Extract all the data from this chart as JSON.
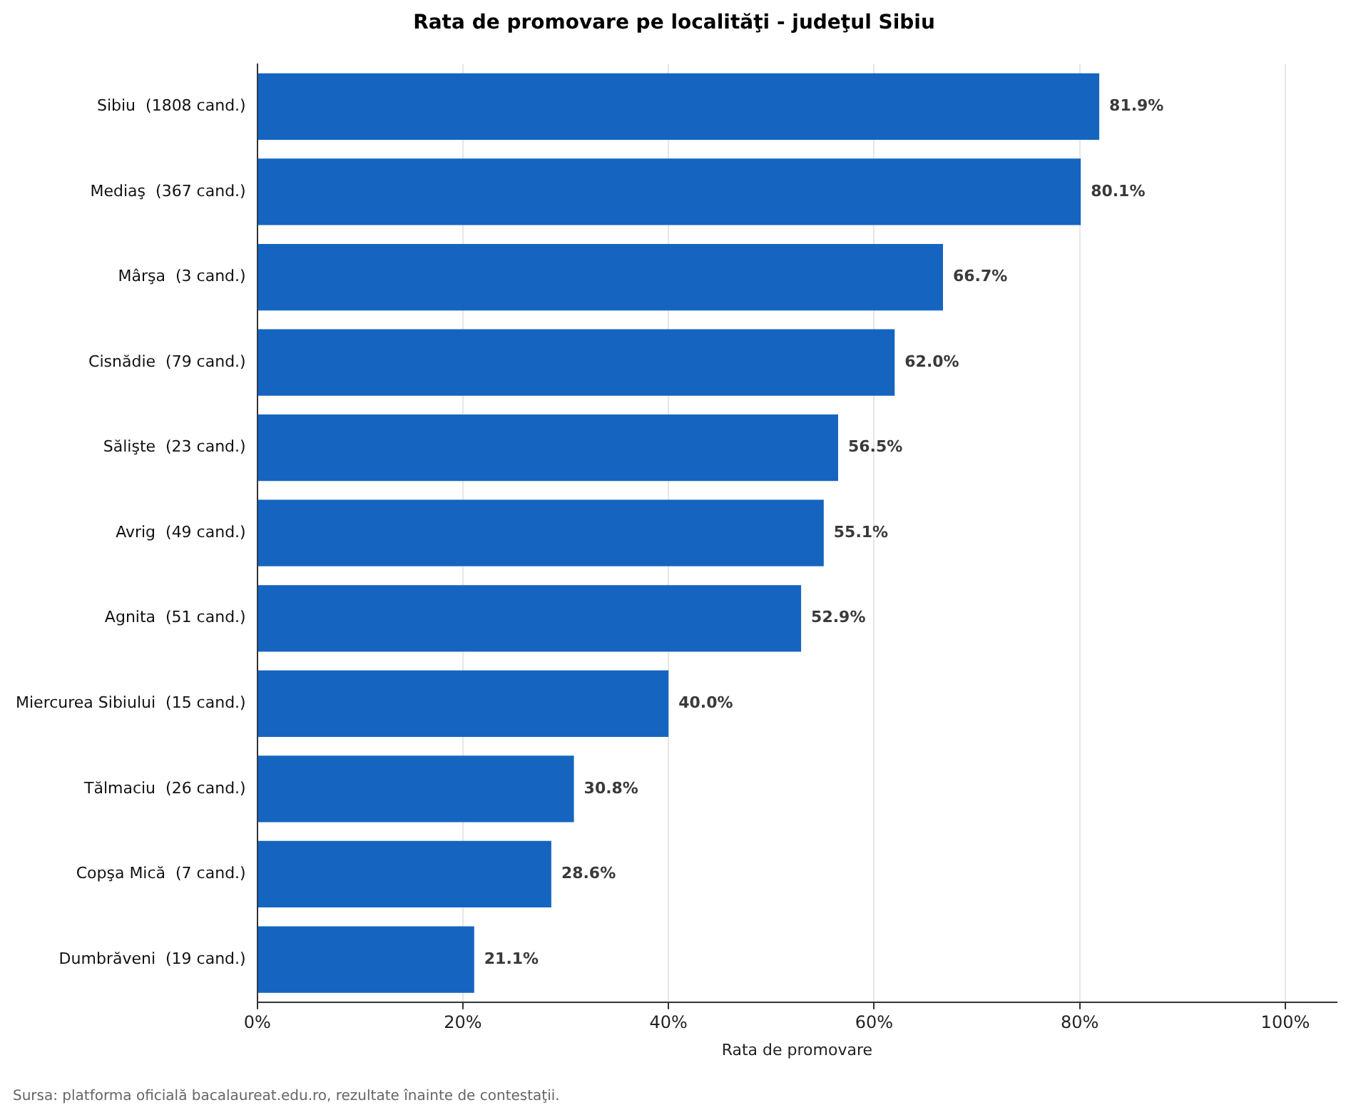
{
  "chart_data": {
    "type": "bar",
    "orientation": "horizontal",
    "title": "Rata de promovare pe localităţi - judeţul Sibiu",
    "xlabel": "Rata de promovare",
    "categories": [
      "Sibiu  (1808 cand.)",
      "Mediaş  (367 cand.)",
      "Mârşa  (3 cand.)",
      "Cisnădie  (79 cand.)",
      "Sălişte  (23 cand.)",
      "Avrig  (49 cand.)",
      "Agnita  (51 cand.)",
      "Miercurea Sibiului  (15 cand.)",
      "Tălmaciu  (26 cand.)",
      "Copşa Mică  (7 cand.)",
      "Dumbrăveni  (19 cand.)"
    ],
    "values": [
      81.9,
      80.1,
      66.7,
      62.0,
      56.5,
      55.1,
      52.9,
      40.0,
      30.8,
      28.6,
      21.1
    ],
    "value_labels": [
      "81.9%",
      "80.1%",
      "66.7%",
      "62.0%",
      "56.5%",
      "55.1%",
      "52.9%",
      "40.0%",
      "30.8%",
      "28.6%",
      "21.1%"
    ],
    "color": "#1565c0",
    "xlim": [
      0,
      105
    ],
    "xticks": [
      {
        "value": 0,
        "label": "0%"
      },
      {
        "value": 20,
        "label": "20%"
      },
      {
        "value": 40,
        "label": "40%"
      },
      {
        "value": 60,
        "label": "60%"
      },
      {
        "value": 80,
        "label": "80%"
      },
      {
        "value": 100,
        "label": "100%"
      }
    ],
    "grid": "x",
    "legend": false,
    "annotations": [
      "Sursa: platforma oficială bacalaureat.edu.ro, rezultate înainte de contestaţii."
    ]
  }
}
